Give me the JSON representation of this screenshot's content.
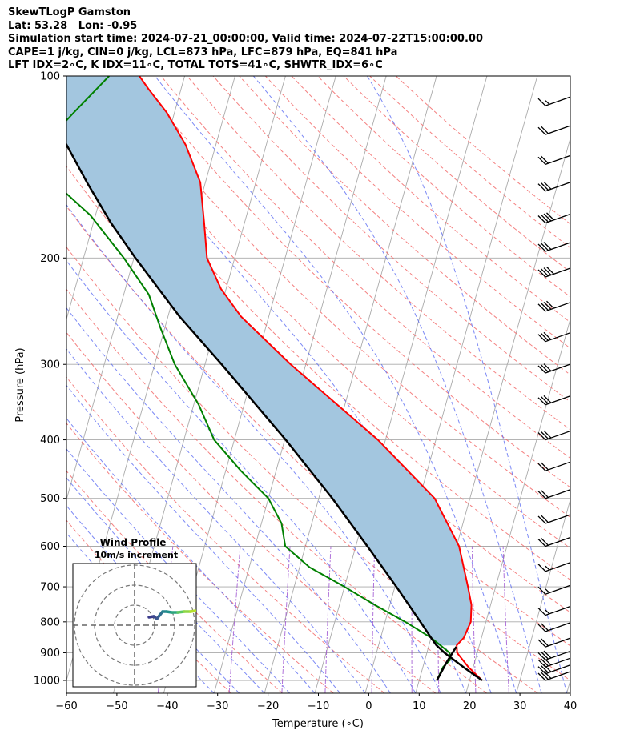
{
  "header": {
    "line1": "SkewTLogP Gamston",
    "line2": "Lat: 53.28   Lon: -0.95",
    "line3": "Simulation start time: 2024-07-21_00:00:00, Valid time: 2024-07-22T15:00:00.00",
    "line4": "CAPE=1 j/kg, CIN=0 j/kg, LCL=873 hPa, LFC=879 hPa, EQ=841 hPa",
    "line5": "LFT IDX=2∘C, K IDX=11∘C, TOTAL TOTS=41∘C, SHWTR_IDX=6∘C"
  },
  "chart_data": {
    "type": "line",
    "xlabel": "Temperature (∘C)",
    "ylabel": "Pressure (hPa)",
    "xlim": [
      -60,
      40
    ],
    "ylim": [
      1050,
      100
    ],
    "y_scale": "log",
    "skew": "skew-T log-P",
    "xticks": [
      "−60",
      "−50",
      "−40",
      "−30",
      "−20",
      "−10",
      "0",
      "10",
      "20",
      "30",
      "40"
    ],
    "yticks": [
      "100",
      "200",
      "300",
      "400",
      "500",
      "600",
      "700",
      "800",
      "900",
      "1000"
    ],
    "grid": true,
    "colors": {
      "temperature": "#ff0000",
      "dewpoint": "#008000",
      "parcel": "#000000",
      "cape_fill": "#a3c6df",
      "dry_adiabats": "#f26b6b",
      "moist_adiabats": "#5b6cf2",
      "mixing_ratio": "#9b4fd0",
      "isotherms": "#aaaaaa",
      "hodograph_start": "#3b3b8c",
      "hodograph_end": "#c9df2c"
    },
    "series": [
      {
        "key": "temperature",
        "points": [
          [
            1000,
            22.5
          ],
          [
            950,
            19
          ],
          [
            900,
            16
          ],
          [
            875,
            15.5
          ],
          [
            850,
            16.5
          ],
          [
            800,
            17
          ],
          [
            750,
            16.2
          ],
          [
            700,
            14.5
          ],
          [
            600,
            10.5
          ],
          [
            500,
            3
          ],
          [
            400,
            -11.5
          ],
          [
            300,
            -33
          ],
          [
            250,
            -45.5
          ],
          [
            225,
            -51
          ],
          [
            200,
            -55.5
          ],
          [
            175,
            -58
          ],
          [
            150,
            -61
          ],
          [
            130,
            -66
          ],
          [
            115,
            -71.5
          ],
          [
            105,
            -76.5
          ],
          [
            100,
            -79
          ]
        ]
      },
      {
        "key": "dewpoint",
        "points": [
          [
            1000,
            13.5
          ],
          [
            950,
            14
          ],
          [
            925,
            15
          ],
          [
            900,
            14.5
          ],
          [
            850,
            10
          ],
          [
            800,
            4
          ],
          [
            750,
            -3
          ],
          [
            700,
            -10
          ],
          [
            650,
            -18
          ],
          [
            600,
            -24
          ],
          [
            550,
            -26
          ],
          [
            500,
            -30
          ],
          [
            450,
            -37
          ],
          [
            400,
            -44
          ],
          [
            350,
            -49
          ],
          [
            300,
            -56
          ],
          [
            260,
            -61
          ],
          [
            230,
            -65
          ],
          [
            200,
            -72
          ],
          [
            170,
            -81
          ],
          [
            150,
            -90
          ],
          [
            135,
            -95.5
          ],
          [
            115,
            -90
          ],
          [
            100,
            -85
          ]
        ]
      },
      {
        "key": "parcel",
        "points": [
          [
            1000,
            22.5
          ],
          [
            950,
            18
          ],
          [
            900,
            13.5
          ],
          [
            875,
            11.5
          ],
          [
            850,
            10
          ],
          [
            800,
            7
          ],
          [
            700,
            0.3
          ],
          [
            600,
            -7.7
          ],
          [
            500,
            -17.3
          ],
          [
            400,
            -29.8
          ],
          [
            300,
            -46.7
          ],
          [
            250,
            -57.7
          ],
          [
            200,
            -69.7
          ],
          [
            175,
            -76.5
          ],
          [
            150,
            -83.5
          ],
          [
            125,
            -91.3
          ],
          [
            100,
            -99.6
          ]
        ]
      },
      {
        "key": "parcel_lower",
        "points": [
          [
            1000,
            13.5
          ],
          [
            930,
            14.5
          ],
          [
            880,
            15.5
          ]
        ]
      }
    ],
    "wind_barbs": [
      {
        "p": 1000,
        "flags": "long3"
      },
      {
        "p": 975,
        "flags": "long3"
      },
      {
        "p": 950,
        "flags": "long3"
      },
      {
        "p": 925,
        "flags": "long3"
      },
      {
        "p": 880,
        "flags": "long2"
      },
      {
        "p": 830,
        "flags": "long2"
      },
      {
        "p": 780,
        "flags": "long1half"
      },
      {
        "p": 720,
        "flags": "long1half"
      },
      {
        "p": 660,
        "flags": "long1half"
      },
      {
        "p": 600,
        "flags": "long2"
      },
      {
        "p": 550,
        "flags": "long2"
      },
      {
        "p": 500,
        "flags": "long2"
      },
      {
        "p": 450,
        "flags": "long2"
      },
      {
        "p": 400,
        "flags": "long3"
      },
      {
        "p": 350,
        "flags": "long3"
      },
      {
        "p": 310,
        "flags": "long3"
      },
      {
        "p": 275,
        "flags": "long3"
      },
      {
        "p": 245,
        "flags": "long4"
      },
      {
        "p": 215,
        "flags": "long4"
      },
      {
        "p": 195,
        "flags": "long3"
      },
      {
        "p": 175,
        "flags": "long4"
      },
      {
        "p": 155,
        "flags": "long3"
      },
      {
        "p": 140,
        "flags": "long2"
      },
      {
        "p": 125,
        "flags": "long2"
      },
      {
        "p": 112,
        "flags": "long1half"
      }
    ],
    "hodograph": {
      "title": "Wind Profile",
      "subtitle": "10m/s increment"
    }
  }
}
